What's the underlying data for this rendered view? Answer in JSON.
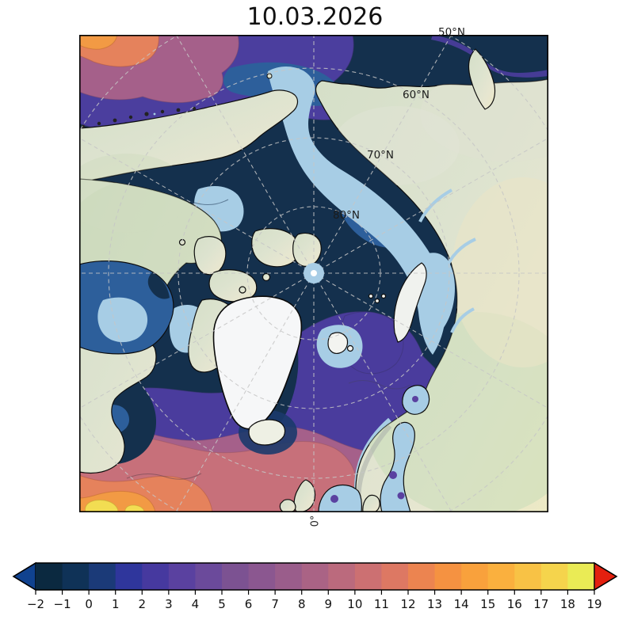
{
  "title": "10.03.2026",
  "map": {
    "lat_labels": [
      "50°N",
      "60°N",
      "70°N",
      "80°N"
    ],
    "lon_label": "0°",
    "palette": {
      "ice_light_blue": "#a7cde5",
      "deep_ocean_navy": "#14304d",
      "mid_ocean_blue": "#2d5f9b",
      "land_green": "#d7e1c8",
      "land_cream": "#ece9c4",
      "greenland_ice": "#f6f7f8",
      "coastline": "#0d0d0d",
      "graticule": "#c6c6c6"
    }
  },
  "colorbar": {
    "tick_labels": [
      "−2",
      "−1",
      "0",
      "1",
      "2",
      "3",
      "4",
      "5",
      "6",
      "7",
      "8",
      "9",
      "10",
      "11",
      "12",
      "13",
      "14",
      "15",
      "16",
      "17",
      "18",
      "19"
    ],
    "cell_colors": [
      "#0b2940",
      "#0f3257",
      "#1b3a78",
      "#2f369c",
      "#46399f",
      "#5a41a0",
      "#6b4a9b",
      "#7c5292",
      "#8b5790",
      "#9a5d8b",
      "#aa6385",
      "#bb6a7d",
      "#cc7072",
      "#dd7863",
      "#ec8450",
      "#f59241",
      "#f9a13c",
      "#fab03e",
      "#f8c245",
      "#f5d44c",
      "#eaeb55"
    ],
    "under_color": "#10428f",
    "over_color": "#e3200f"
  }
}
